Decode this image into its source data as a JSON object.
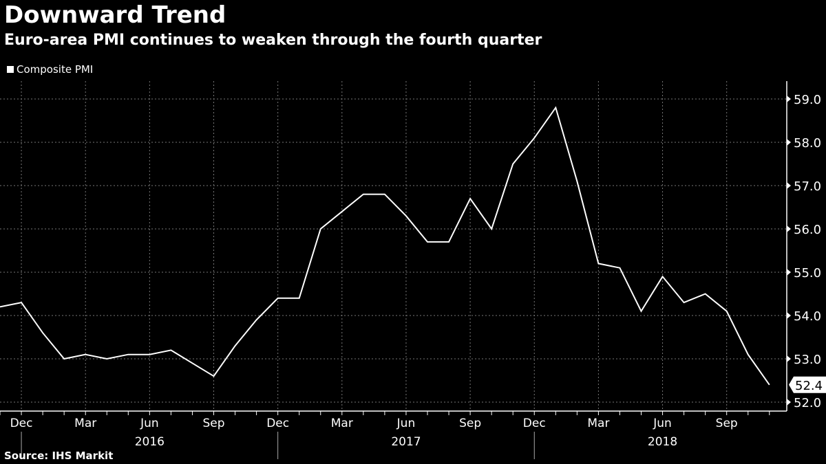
{
  "chart_data": {
    "type": "line",
    "title": "Downward Trend",
    "subtitle": "Euro-area PMI continues to weaken through the fourth quarter",
    "source": "Source: IHS Markit",
    "legend": [
      {
        "name": "Composite PMI",
        "color": "#ffffff"
      }
    ],
    "legend_position": "top-left",
    "ylim": [
      51.8,
      59.4
    ],
    "y_ticks": [
      "52.0",
      "53.0",
      "54.0",
      "55.0",
      "56.0",
      "57.0",
      "58.0",
      "59.0"
    ],
    "x_month_labels": [
      {
        "month_index": 1,
        "label": "Dec"
      },
      {
        "month_index": 4,
        "label": "Mar"
      },
      {
        "month_index": 7,
        "label": "Jun"
      },
      {
        "month_index": 10,
        "label": "Sep"
      },
      {
        "month_index": 13,
        "label": "Dec"
      },
      {
        "month_index": 16,
        "label": "Mar"
      },
      {
        "month_index": 19,
        "label": "Jun"
      },
      {
        "month_index": 22,
        "label": "Sep"
      },
      {
        "month_index": 25,
        "label": "Dec"
      },
      {
        "month_index": 28,
        "label": "Mar"
      },
      {
        "month_index": 31,
        "label": "Jun"
      },
      {
        "month_index": 34,
        "label": "Sep"
      }
    ],
    "x_year_labels": [
      {
        "month_index": 7,
        "label": "2016"
      },
      {
        "month_index": 19,
        "label": "2017"
      },
      {
        "month_index": 31,
        "label": "2018"
      }
    ],
    "x": [
      "2015-11",
      "2015-12",
      "2016-01",
      "2016-02",
      "2016-03",
      "2016-04",
      "2016-05",
      "2016-06",
      "2016-07",
      "2016-08",
      "2016-09",
      "2016-10",
      "2016-11",
      "2016-12",
      "2017-01",
      "2017-02",
      "2017-03",
      "2017-04",
      "2017-05",
      "2017-06",
      "2017-07",
      "2017-08",
      "2017-09",
      "2017-10",
      "2017-11",
      "2017-12",
      "2018-01",
      "2018-02",
      "2018-03",
      "2018-04",
      "2018-05",
      "2018-06",
      "2018-07",
      "2018-08",
      "2018-09",
      "2018-10",
      "2018-11"
    ],
    "series": [
      {
        "name": "Composite PMI",
        "values": [
          54.2,
          54.3,
          53.6,
          53.0,
          53.1,
          53.0,
          53.1,
          53.1,
          53.2,
          52.9,
          52.6,
          53.3,
          53.9,
          54.4,
          54.4,
          56.0,
          56.4,
          56.8,
          56.8,
          56.3,
          55.7,
          55.7,
          56.7,
          56.0,
          57.5,
          58.1,
          58.8,
          57.1,
          55.2,
          55.1,
          54.1,
          54.9,
          54.3,
          54.5,
          54.1,
          53.1,
          52.4
        ]
      }
    ],
    "last_value_label": "52.4",
    "grid": true
  }
}
